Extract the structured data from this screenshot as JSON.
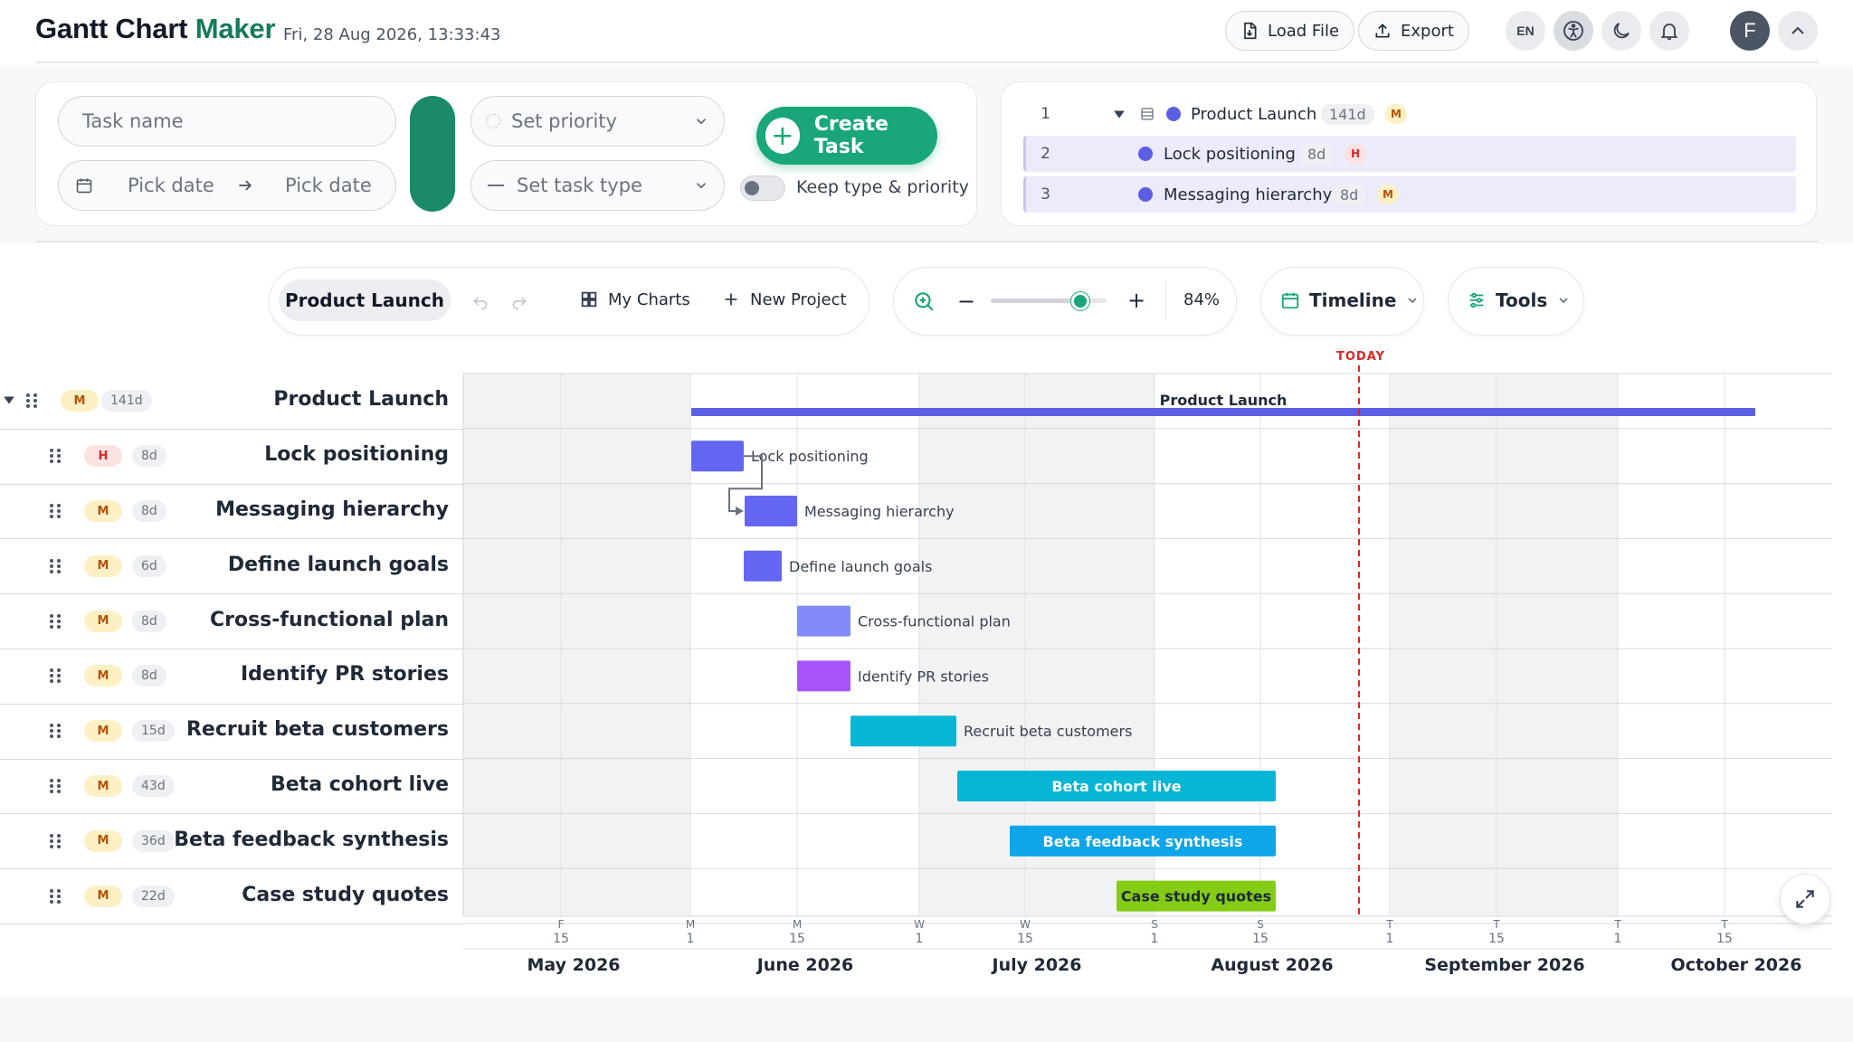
{
  "header": {
    "title_main": "Gantt Chart ",
    "title_accent": "Maker",
    "datetime": "Fri, 28 Aug 2026, 13:33:43",
    "load_label": "Load File",
    "export_label": "Export",
    "lang": "EN",
    "avatar_letter": "F"
  },
  "form": {
    "task_name_placeholder": "Task name",
    "start_placeholder": "Pick date",
    "end_placeholder": "Pick date",
    "priority_placeholder": "Set priority",
    "type_placeholder": "Set task type",
    "create_label": "Create Task",
    "keep_label": "Keep type & priority"
  },
  "tree": [
    {
      "num": "1",
      "name": "Product Launch",
      "dur": "141d",
      "priority": "M"
    },
    {
      "num": "2",
      "name": "Lock positioning",
      "dur": "8d",
      "priority": "H"
    },
    {
      "num": "3",
      "name": "Messaging hierarchy",
      "dur": "8d",
      "priority": "M"
    }
  ],
  "toolbar": {
    "project": "Product Launch",
    "my_charts": "My Charts",
    "new_project": "New Project",
    "zoom_minus": "−",
    "zoom_plus": "+",
    "zoom_percent": "84%",
    "zoom_level": 0.84,
    "view": "Timeline",
    "tools": "Tools"
  },
  "gantt": {
    "today_label": "TODAY",
    "tasks": [
      {
        "name": "Product Launch",
        "priority": "M",
        "dur": "141d",
        "color": "#5b5fe3",
        "is_group": true
      },
      {
        "name": "Lock positioning",
        "priority": "H",
        "dur": "8d",
        "color": "#6366f1"
      },
      {
        "name": "Messaging hierarchy",
        "priority": "M",
        "dur": "8d",
        "color": "#6366f1"
      },
      {
        "name": "Define launch goals",
        "priority": "M",
        "dur": "6d",
        "color": "#6366f1"
      },
      {
        "name": "Cross-functional plan",
        "priority": "M",
        "dur": "8d",
        "color": "#818cf8"
      },
      {
        "name": "Identify PR stories",
        "priority": "M",
        "dur": "8d",
        "color": "#a855f7"
      },
      {
        "name": "Recruit beta customers",
        "priority": "M",
        "dur": "15d",
        "color": "#06b6d4"
      },
      {
        "name": "Beta cohort live",
        "priority": "M",
        "dur": "43d",
        "color": "#06b6d4"
      },
      {
        "name": "Beta feedback synthesis",
        "priority": "M",
        "dur": "36d",
        "color": "#0ea5e9"
      },
      {
        "name": "Case study quotes",
        "priority": "M",
        "dur": "22d",
        "color": "#84cc16"
      }
    ],
    "ticks": [
      {
        "day": "F",
        "num": "15"
      },
      {
        "day": "M",
        "num": "1"
      },
      {
        "day": "M",
        "num": "15"
      },
      {
        "day": "W",
        "num": "1"
      },
      {
        "day": "W",
        "num": "15"
      },
      {
        "day": "S",
        "num": "1"
      },
      {
        "day": "S",
        "num": "15"
      },
      {
        "day": "T",
        "num": "1"
      },
      {
        "day": "T",
        "num": "15"
      },
      {
        "day": "T",
        "num": "1"
      },
      {
        "day": "T",
        "num": "15"
      }
    ],
    "months": [
      "May 2026",
      "June 2026",
      "July 2026",
      "August 2026",
      "September 2026",
      "October 2026"
    ]
  }
}
